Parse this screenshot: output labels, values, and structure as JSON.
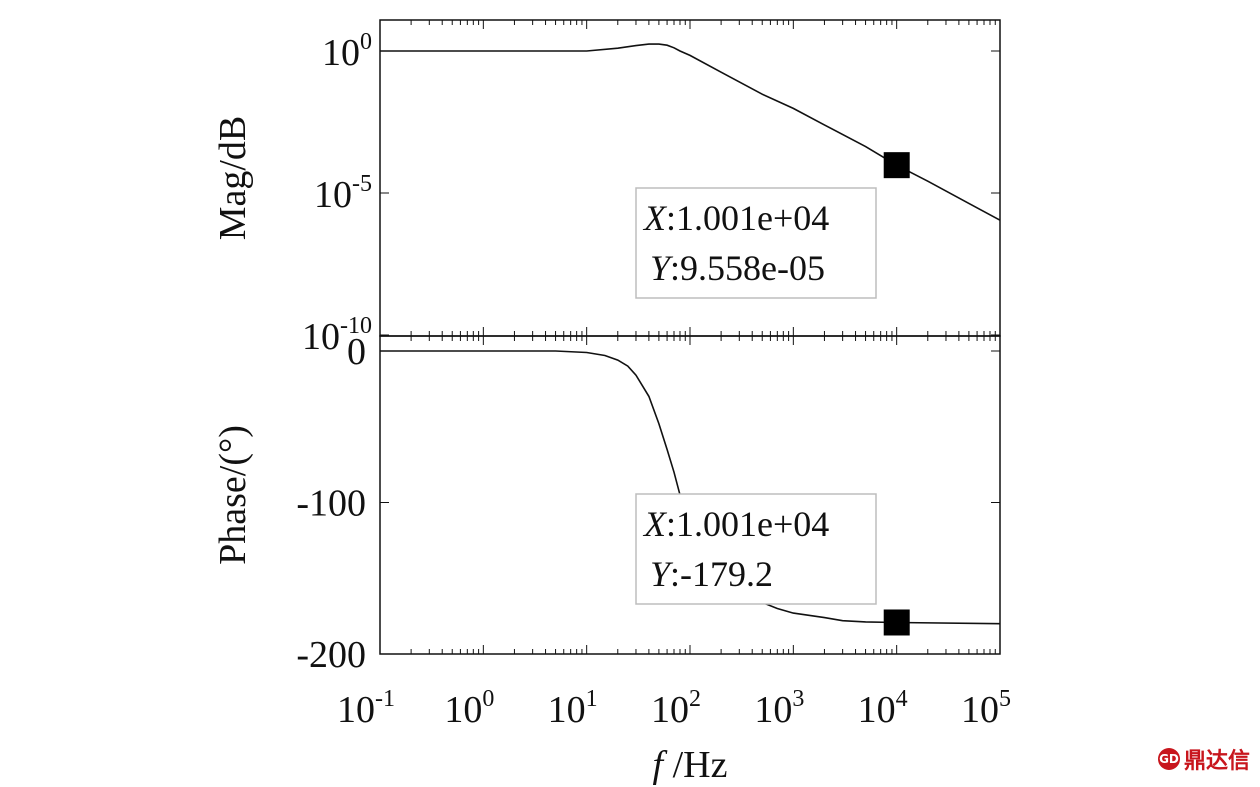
{
  "chart_data": [
    {
      "type": "line",
      "panel": "magnitude",
      "ylabel": "Mag/dB",
      "xscale": "log",
      "yscale": "log",
      "xlim": [
        0.1,
        100000
      ],
      "ylim": [
        1e-10,
        10
      ],
      "yticks": [
        {
          "value": 1,
          "base": "10",
          "exp": "0"
        },
        {
          "value": 1e-05,
          "base": "10",
          "exp": "-5"
        },
        {
          "value": 1e-10,
          "base": "10",
          "exp": "-10"
        }
      ],
      "series": [
        {
          "x": [
            0.1,
            1,
            10,
            20,
            30,
            40,
            50,
            60,
            70,
            80,
            100,
            200,
            500,
            1000,
            2000,
            5000,
            10010,
            20000,
            50000,
            100000
          ],
          "y": [
            1,
            1,
            1,
            1.25,
            1.55,
            1.75,
            1.75,
            1.6,
            1.3,
            1.0,
            0.7,
            0.18,
            0.03,
            0.0095,
            0.0025,
            0.00043,
            9.558e-05,
            2.6e-05,
            4.3e-06,
            1.1e-06
          ]
        }
      ],
      "datatip": {
        "x_label": "X",
        "x_value": ":1.001e+04",
        "y_label": "Y",
        "y_value": ":9.558e-05",
        "x": 10010,
        "y": 9.558e-05
      }
    },
    {
      "type": "line",
      "panel": "phase",
      "ylabel": "Phase/(°)",
      "xlabel": "/Hz",
      "xlabel_italic": "f",
      "xscale": "log",
      "xlim": [
        0.1,
        100000
      ],
      "ylim": [
        -200,
        5
      ],
      "yticks": [
        {
          "value": 0,
          "label": "0"
        },
        {
          "value": -100,
          "label": "-100"
        },
        {
          "value": -200,
          "label": "-200"
        }
      ],
      "xticks": [
        {
          "value": 0.1,
          "base": "10",
          "exp": "-1"
        },
        {
          "value": 1,
          "base": "10",
          "exp": "0"
        },
        {
          "value": 10,
          "base": "10",
          "exp": "1"
        },
        {
          "value": 100,
          "base": "10",
          "exp": "2"
        },
        {
          "value": 1000,
          "base": "10",
          "exp": "3"
        },
        {
          "value": 10000,
          "base": "10",
          "exp": "4"
        },
        {
          "value": 100000,
          "base": "10",
          "exp": "5"
        }
      ],
      "series": [
        {
          "x": [
            0.1,
            1,
            5,
            10,
            15,
            20,
            25,
            30,
            40,
            50,
            60,
            70,
            80,
            100,
            150,
            200,
            300,
            500,
            700,
            1000,
            2000,
            3000,
            5000,
            10010,
            100000
          ],
          "y": [
            0,
            0,
            0,
            -1,
            -3,
            -6,
            -10,
            -16,
            -30,
            -48,
            -65,
            -80,
            -95,
            -112,
            -135,
            -148,
            -158,
            -166,
            -170,
            -173,
            -176,
            -178,
            -178.8,
            -179.2,
            -180
          ]
        }
      ],
      "datatip": {
        "x_label": "X",
        "x_value": ":1.001e+04",
        "y_label": "Y",
        "y_value": ":-179.2",
        "x": 10010,
        "y": -179.2
      }
    }
  ],
  "watermark": {
    "text": "鼎达信",
    "mark": "GD",
    "color": "#c8161d"
  }
}
